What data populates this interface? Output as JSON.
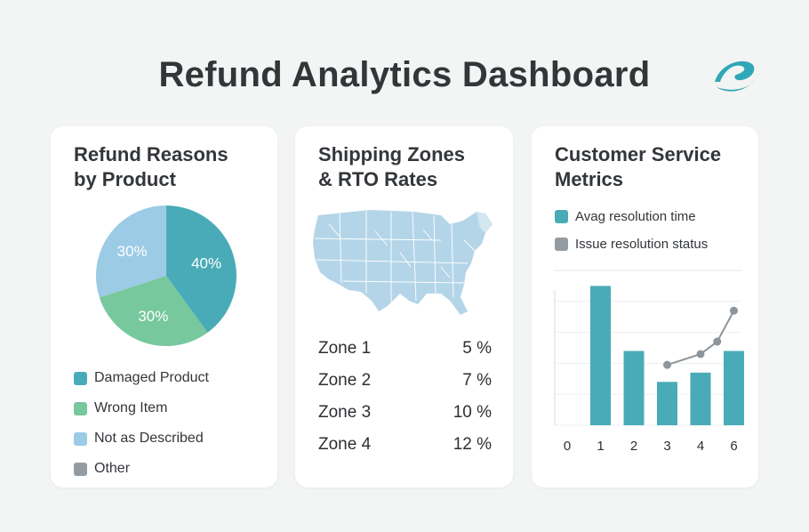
{
  "header": {
    "title": "Refund Analytics Dashboard",
    "logo_icon": "brand-logo-icon"
  },
  "colors": {
    "teal": "#4aabb8",
    "green": "#77c89d",
    "light_blue": "#9ccbe5",
    "gray": "#949ca3",
    "map": "#b4d5e8"
  },
  "refund_reasons": {
    "title_line1": "Refund Reasons",
    "title_line2": "by Product",
    "chart_data": {
      "type": "pie",
      "slices": [
        {
          "label": "Damaged Product",
          "value": 40,
          "display": "40%",
          "color": "#4aabb8"
        },
        {
          "label": "Wrong Item",
          "value": 30,
          "display": "30%",
          "color": "#77c89d"
        },
        {
          "label": "Not as Described",
          "value": 30,
          "display": "30%",
          "color": "#9ccbe5"
        }
      ]
    },
    "legend": [
      {
        "label": "Damaged Product",
        "color": "#4aabb8"
      },
      {
        "label": "Wrong Item",
        "color": "#77c89d"
      },
      {
        "label": "Not as Described",
        "color": "#9ccbe5"
      },
      {
        "label": "Other",
        "color": "#949ca3"
      }
    ]
  },
  "shipping": {
    "title_line1": "Shipping Zones",
    "title_line2": "& RTO Rates",
    "map_icon": "us-map-icon",
    "zones": [
      {
        "name": "Zone 1",
        "rate": "5 %"
      },
      {
        "name": "Zone 2",
        "rate": "7 %"
      },
      {
        "name": "Zone 3",
        "rate": "10 %"
      },
      {
        "name": "Zone 4",
        "rate": "12 %"
      }
    ]
  },
  "customer_service": {
    "title_line1": "Customer Service",
    "title_line2": "Metrics",
    "legend": [
      {
        "label": "Avag resolution time",
        "color": "#4aabb8"
      },
      {
        "label": "Issue resolution status",
        "color": "#949ca3"
      }
    ],
    "chart_data": {
      "type": "bar",
      "x_ticks": [
        "0",
        "1",
        "2",
        "3",
        "4",
        "6"
      ],
      "categories": [
        "1",
        "2",
        "3",
        "4",
        "6"
      ],
      "series": [
        {
          "name": "Avag resolution time",
          "type": "bar",
          "values": [
            9.0,
            4.8,
            2.8,
            3.4,
            4.8
          ]
        },
        {
          "name": "Issue resolution status",
          "type": "line",
          "x": [
            "3",
            "4",
            "5",
            "6"
          ],
          "values": [
            3.9,
            4.6,
            5.4,
            7.4
          ]
        }
      ],
      "ylim": [
        0,
        10
      ],
      "grid": true
    }
  }
}
